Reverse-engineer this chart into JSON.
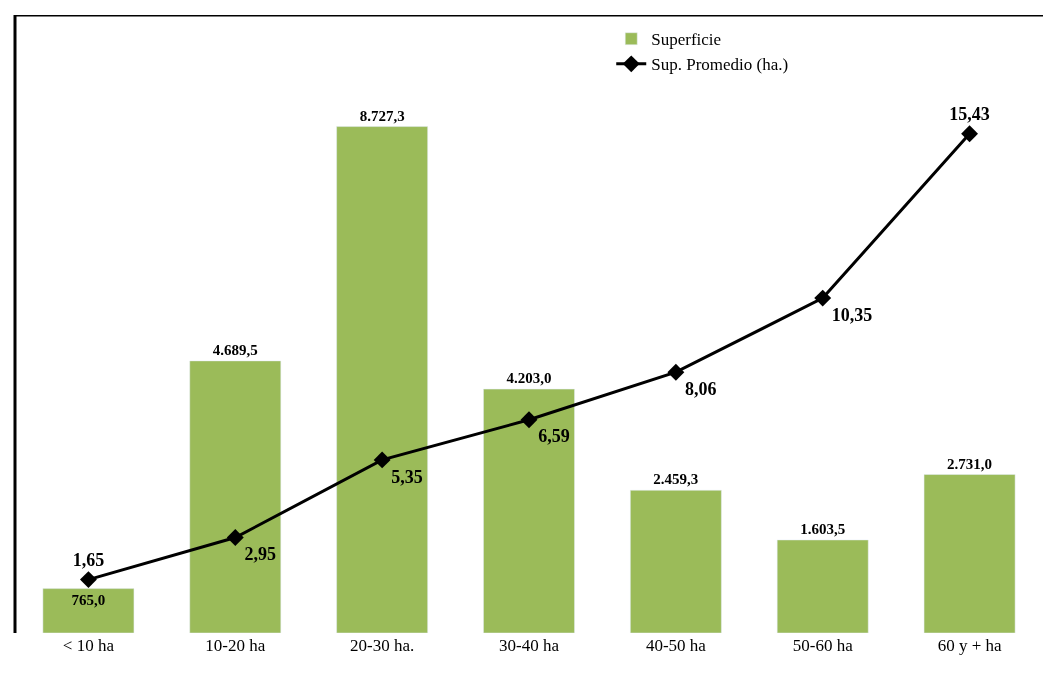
{
  "chart_data": {
    "type": "bar",
    "categories": [
      "< 10 ha",
      "10-20 ha",
      "20-30 ha.",
      "30-40 ha",
      "40-50 ha",
      "50-60 ha",
      "60 y + ha"
    ],
    "series": [
      {
        "name": "Superficie",
        "color": "#9bbb59",
        "values": [
          765.0,
          4689.5,
          8727.3,
          4203.0,
          2459.3,
          1603.5,
          2731.0
        ],
        "value_labels": [
          "765,0",
          "4.689,5",
          "8.727,3",
          "4.203,0",
          "2.459,3",
          "1.603,5",
          "2.731,0"
        ]
      },
      {
        "name": "Sup. Promedio (ha.)",
        "type": "line",
        "axis": "y2",
        "color": "#000000",
        "marker": "diamond",
        "line_style": "solid",
        "values": [
          1.65,
          2.95,
          5.35,
          6.59,
          8.06,
          10.35,
          15.43
        ],
        "value_labels": [
          "1,65",
          "2,95",
          "5,35",
          "6,59",
          "8,06",
          "10,35",
          "15,43"
        ]
      }
    ],
    "ylim": [
      0,
      10650
    ],
    "y2lim": [
      0,
      19.1
    ],
    "tick_labels": "x",
    "legend": "top right"
  }
}
